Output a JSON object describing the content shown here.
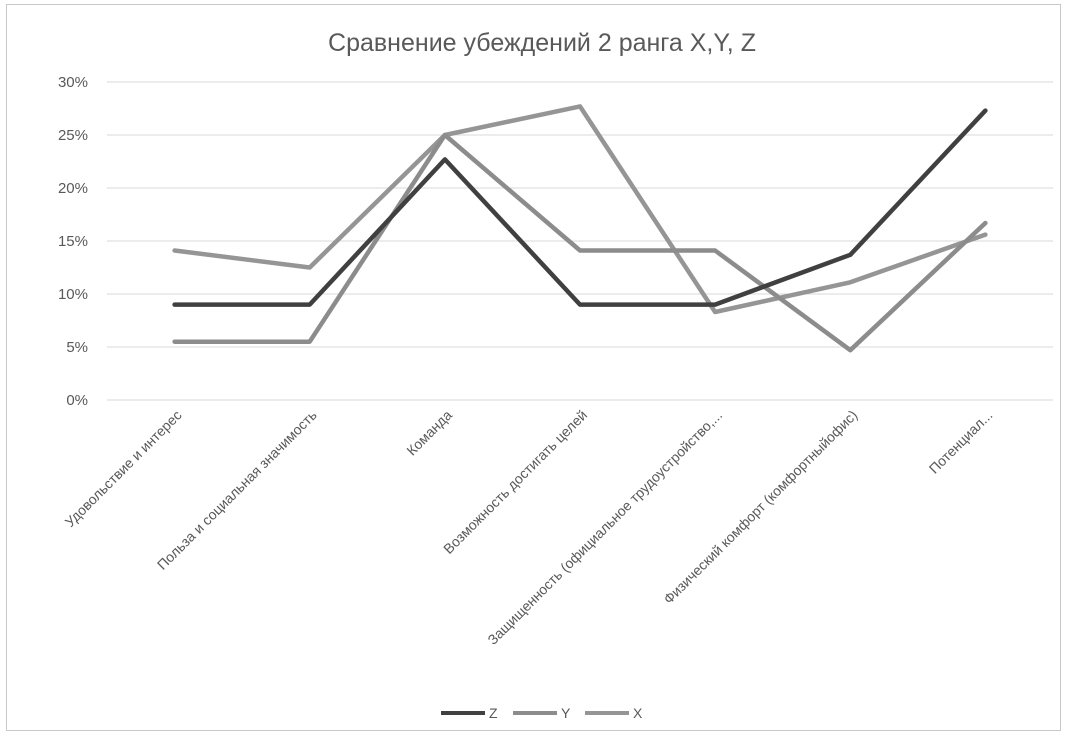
{
  "chart_data": {
    "type": "line",
    "title": "Сравнение убеждений 2 ранга X,Y, Z",
    "xlabel": "",
    "ylabel": "",
    "ylim": [
      0,
      30
    ],
    "yticks": [
      "0%",
      "5%",
      "10%",
      "15%",
      "20%",
      "25%",
      "30%"
    ],
    "grid": true,
    "legend_position": "bottom",
    "categories": [
      "Удовольствие и интерес",
      "Польза и социальная значимость",
      "Команда",
      "Возможность достигать целей",
      "Защищенность (официальное трудоустройство,...",
      "Физический комфорт (комфортныйофис)",
      "Потенциал..."
    ],
    "series": [
      {
        "name": "Z",
        "color": "#404040",
        "values": [
          9,
          9,
          22.7,
          9,
          9,
          13.7,
          27.3
        ]
      },
      {
        "name": "Y",
        "color": "#8c8c8c",
        "values": [
          5.5,
          5.5,
          25,
          14.1,
          14.1,
          4.7,
          16.7
        ]
      },
      {
        "name": "X",
        "color": "#959595",
        "values": [
          14.1,
          12.5,
          25,
          27.7,
          8.3,
          11.1,
          15.6
        ]
      }
    ]
  }
}
